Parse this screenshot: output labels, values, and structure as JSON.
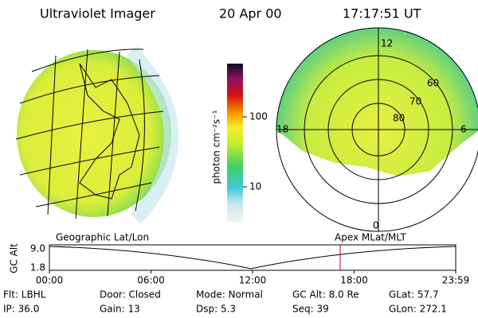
{
  "header": {
    "instrument": "Ultraviolet Imager",
    "date": "20 Apr 00",
    "time": "17:17:51 UT"
  },
  "colorbar": {
    "label": "photon cm⁻²s⁻¹",
    "ticks": [
      "100",
      "10"
    ]
  },
  "polar_plot": {
    "mlt_labels": [
      "12",
      "18",
      "6",
      "0"
    ],
    "mlat_labels": [
      "60",
      "70",
      "80"
    ]
  },
  "altitude_panel": {
    "left_title": "Geographic Lat/Lon",
    "right_title": "Apex MLat/MLT",
    "y_label": "GC Alt",
    "yticks": [
      "9.0",
      "1.8"
    ],
    "xticks": [
      "00:00",
      "06:00",
      "12:00",
      "18:00",
      "23:59"
    ]
  },
  "info": [
    [
      "Flt: LBHL",
      "IP: 36.0"
    ],
    [
      "Door: Closed",
      "Gain: 13"
    ],
    [
      "Mode: Normal",
      "Dsp:    5.3"
    ],
    [
      "GC Alt: 8.0 Re",
      "Seq: 39"
    ],
    [
      "GLat: 57.7",
      "GLon: 272.1"
    ]
  ]
}
